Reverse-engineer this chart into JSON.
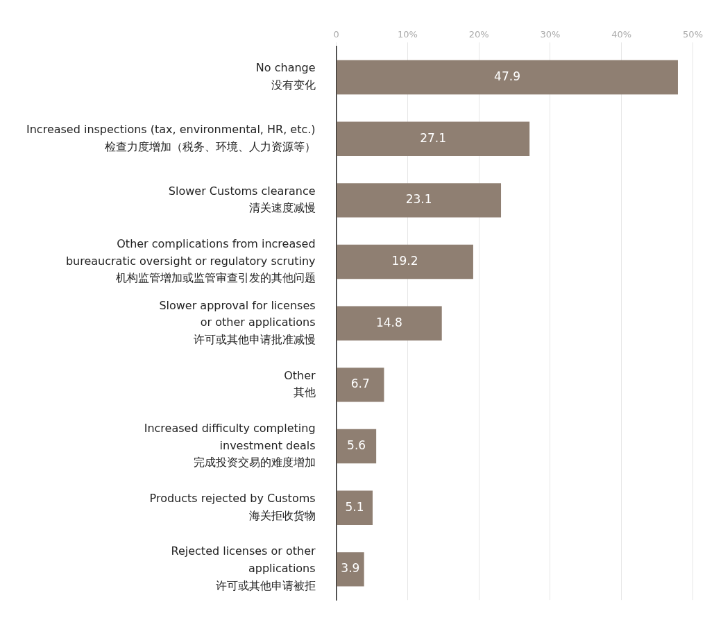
{
  "chart_data": {
    "type": "bar",
    "orientation": "horizontal",
    "categories": [
      "No change\n没有变化",
      "Increased inspections (tax, environmental, HR, etc.)\n检查力度增加（税务、环境、人力资源等）",
      "Slower Customs clearance\n清关速度减慢",
      "Other complications from increased\nbureaucratic oversight or regulatory scrutiny\n机构监管增加或监管审查引发的其他问题",
      "Slower approval for licenses\nor other applications\n许可或其他申请批准减慢",
      "Other\n其他",
      "Increased difficulty completing\ninvestment deals\n完成投资交易的难度增加",
      "Products rejected by Customs\n海关拒收货物",
      "Rejected licenses or other\napplications\n许可或其他申请被拒"
    ],
    "values": [
      47.9,
      27.1,
      23.1,
      19.2,
      14.8,
      6.7,
      5.6,
      5.1,
      3.9
    ],
    "color": "#8f7f72",
    "data_labels": true,
    "xlim": [
      0,
      50
    ],
    "xticks": [
      0,
      {
        "value": 10,
        "label": "10%"
      },
      {
        "value": 20,
        "label": "20%"
      },
      {
        "value": 30,
        "label": "30%"
      },
      {
        "value": 40,
        "label": "40%"
      },
      {
        "value": 50,
        "label": "50%"
      }
    ],
    "grid": "x",
    "legend": false
  }
}
